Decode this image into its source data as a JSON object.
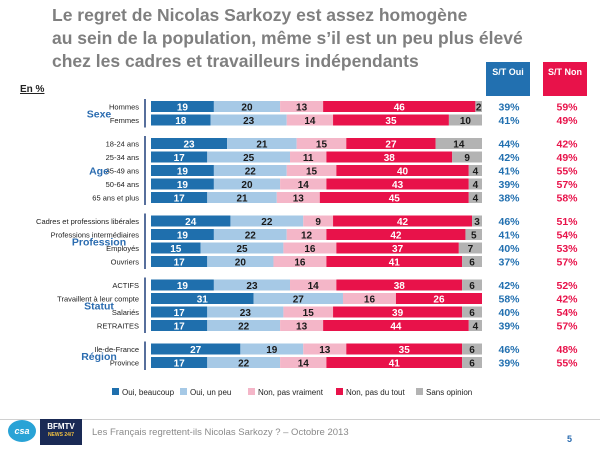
{
  "title_lines": [
    "Le regret de Nicolas Sarkozy est assez homogène",
    "au sein de la population, même s’il est un peu plus élevé",
    "chez les cadres et travailleurs indépendants"
  ],
  "unit_label": "En %",
  "header": {
    "oui": "S/T Oui",
    "non": "S/T Non"
  },
  "colors": {
    "oui_beaucoup": "#1f6fad",
    "oui_un_peu": "#a6c9e6",
    "non_pas_vraiment": "#f4b6c8",
    "non_pas_du_tout": "#e8124a",
    "sans_opinion": "#b3b3b3",
    "group_label": "#2b6cb0",
    "st_oui": "#2270b0",
    "st_non": "#e8124a"
  },
  "footer": {
    "text": "Les Français regrettent-ils Nicolas Sarkozy ? – Octobre 2013",
    "page": "5",
    "logo_csa": "csa",
    "logo_bfm": "BFMTV",
    "logo_bfm_sub": "NEWS 24/7"
  },
  "chart_data": {
    "type": "bar",
    "stacked": true,
    "orientation": "horizontal",
    "title": "Le regret de Nicolas Sarkozy est assez homogène au sein de la population, même s’il est un peu plus élevé chez les cadres et travailleurs indépendants",
    "xlim": [
      0,
      100
    ],
    "legend": [
      "Oui, beaucoup",
      "Oui, un peu",
      "Non, pas vraiment",
      "Non, pas du tout",
      "Sans opinion"
    ],
    "groups": [
      {
        "name": "Sexe",
        "rows": [
          {
            "label": "Hommes",
            "values": [
              19,
              20,
              13,
              46,
              2
            ],
            "st_oui": "39%",
            "st_non": "59%"
          },
          {
            "label": "Femmes",
            "values": [
              18,
              23,
              14,
              35,
              10
            ],
            "st_oui": "41%",
            "st_non": "49%"
          }
        ]
      },
      {
        "name": "Age",
        "rows": [
          {
            "label": "18-24 ans",
            "values": [
              23,
              21,
              15,
              27,
              14
            ],
            "st_oui": "44%",
            "st_non": "42%"
          },
          {
            "label": "25-34 ans",
            "values": [
              17,
              25,
              11,
              38,
              9
            ],
            "st_oui": "42%",
            "st_non": "49%"
          },
          {
            "label": "35-49 ans",
            "values": [
              19,
              22,
              15,
              40,
              4
            ],
            "st_oui": "41%",
            "st_non": "55%"
          },
          {
            "label": "50-64 ans",
            "values": [
              19,
              20,
              14,
              43,
              4
            ],
            "st_oui": "39%",
            "st_non": "57%"
          },
          {
            "label": "65 ans et plus",
            "values": [
              17,
              21,
              13,
              45,
              4
            ],
            "st_oui": "38%",
            "st_non": "58%"
          }
        ]
      },
      {
        "name": "Profession",
        "rows": [
          {
            "label": "Cadres et professions libérales",
            "values": [
              24,
              22,
              9,
              42,
              3
            ],
            "st_oui": "46%",
            "st_non": "51%"
          },
          {
            "label": "Professions intermédiaires",
            "values": [
              19,
              22,
              12,
              42,
              5
            ],
            "st_oui": "41%",
            "st_non": "54%"
          },
          {
            "label": "Employés",
            "values": [
              15,
              25,
              16,
              37,
              7
            ],
            "st_oui": "40%",
            "st_non": "53%"
          },
          {
            "label": "Ouvriers",
            "values": [
              17,
              20,
              16,
              41,
              6
            ],
            "st_oui": "37%",
            "st_non": "57%"
          }
        ]
      },
      {
        "name": "Statut",
        "rows": [
          {
            "label": "ACTIFS",
            "values": [
              19,
              23,
              14,
              38,
              6
            ],
            "st_oui": "42%",
            "st_non": "52%"
          },
          {
            "label": "Travaillent à leur compte",
            "values": [
              31,
              27,
              16,
              26,
              0
            ],
            "st_oui": "58%",
            "st_non": "42%"
          },
          {
            "label": "Salariés",
            "values": [
              17,
              23,
              15,
              39,
              6
            ],
            "st_oui": "40%",
            "st_non": "54%"
          },
          {
            "label": "RETRAITES",
            "values": [
              17,
              22,
              13,
              44,
              4
            ],
            "st_oui": "39%",
            "st_non": "57%"
          }
        ]
      },
      {
        "name": "Région",
        "rows": [
          {
            "label": "Ile-de-France",
            "values": [
              27,
              19,
              13,
              35,
              6
            ],
            "st_oui": "46%",
            "st_non": "48%"
          },
          {
            "label": "Province",
            "values": [
              17,
              22,
              14,
              41,
              6
            ],
            "st_oui": "39%",
            "st_non": "55%"
          }
        ]
      }
    ]
  }
}
